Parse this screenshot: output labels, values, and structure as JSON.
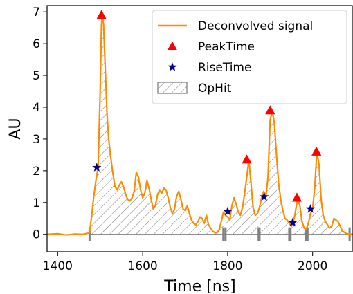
{
  "chart_data": {
    "type": "line",
    "xlabel": "Time [ns]",
    "ylabel": "AU",
    "xlim": [
      1375,
      2095
    ],
    "ylim": [
      -0.55,
      7.2
    ],
    "xticks": [
      1400,
      1600,
      1800,
      2000
    ],
    "yticks": [
      0,
      1,
      2,
      3,
      4,
      5,
      6,
      7
    ],
    "grid": false,
    "legend_position": "top-right",
    "legend": [
      {
        "label": "Deconvolved signal",
        "kind": "line",
        "color": "#ff8c00"
      },
      {
        "label": "PeakTime",
        "kind": "triangle",
        "color": "#ff0000"
      },
      {
        "label": "RiseTime",
        "kind": "star",
        "color": "#00008b"
      },
      {
        "label": "OpHit",
        "kind": "hatch",
        "color": "#808080"
      }
    ],
    "signal": {
      "name": "Deconvolved signal",
      "color": "#ff8c00",
      "x": [
        1375,
        1400,
        1420,
        1440,
        1460,
        1475,
        1480,
        1485,
        1490,
        1495,
        1500,
        1503,
        1505,
        1508,
        1512,
        1516,
        1520,
        1525,
        1530,
        1535,
        1540,
        1545,
        1550,
        1555,
        1560,
        1565,
        1570,
        1575,
        1580,
        1585,
        1590,
        1595,
        1600,
        1605,
        1610,
        1615,
        1620,
        1625,
        1630,
        1635,
        1640,
        1645,
        1650,
        1655,
        1660,
        1665,
        1670,
        1675,
        1680,
        1685,
        1690,
        1695,
        1700,
        1705,
        1710,
        1715,
        1720,
        1725,
        1730,
        1735,
        1740,
        1745,
        1750,
        1755,
        1760,
        1765,
        1770,
        1775,
        1780,
        1785,
        1790,
        1795,
        1800,
        1805,
        1810,
        1815,
        1820,
        1825,
        1830,
        1835,
        1840,
        1845,
        1850,
        1855,
        1860,
        1865,
        1870,
        1875,
        1880,
        1885,
        1890,
        1895,
        1900,
        1905,
        1910,
        1915,
        1920,
        1925,
        1930,
        1935,
        1940,
        1945,
        1950,
        1955,
        1960,
        1965,
        1970,
        1975,
        1980,
        1985,
        1990,
        1995,
        2000,
        2005,
        2010,
        2015,
        2020,
        2025,
        2030,
        2035,
        2040,
        2045,
        2050,
        2060,
        2070,
        2080,
        2095
      ],
      "y": [
        0,
        0.02,
        -0.02,
        0.01,
        0,
        0.05,
        0.6,
        1.2,
        1.7,
        2.1,
        4.5,
        6.6,
        6.9,
        6.6,
        5.2,
        3.8,
        3.0,
        2.4,
        1.9,
        1.5,
        1.4,
        1.55,
        1.65,
        1.5,
        1.25,
        1.1,
        1.05,
        1.15,
        1.35,
        1.95,
        1.8,
        1.4,
        1.15,
        1.3,
        1.7,
        1.45,
        1.1,
        0.8,
        0.9,
        1.25,
        1.4,
        1.3,
        1.45,
        1.4,
        1.15,
        0.85,
        0.65,
        0.8,
        1.2,
        1.35,
        1.1,
        0.8,
        0.75,
        0.9,
        0.65,
        0.45,
        0.35,
        0.3,
        0.4,
        0.55,
        0.5,
        0.35,
        0.6,
        0.3,
        0.2,
        0.1,
        0.05,
        0.05,
        0.15,
        0.4,
        0.7,
        0.6,
        0.55,
        0.45,
        0.9,
        1.15,
        0.95,
        0.7,
        0.6,
        0.85,
        1.3,
        1.8,
        2.35,
        1.6,
        0.85,
        0.6,
        0.65,
        0.85,
        1.15,
        1.35,
        1.2,
        1.8,
        3.6,
        3.9,
        3.5,
        2.5,
        1.6,
        1.1,
        0.75,
        0.5,
        0.45,
        0.35,
        0.25,
        0.4,
        0.75,
        1.15,
        0.9,
        0.4,
        0.2,
        0.15,
        0.35,
        0.65,
        0.8,
        1.5,
        2.6,
        2.2,
        1.1,
        0.6,
        0.4,
        0.3,
        0.2,
        0.25,
        0.5,
        0.4,
        0.1,
        0.02,
        0
      ]
    },
    "peak_time": [
      {
        "x": 1503,
        "y": 6.9
      },
      {
        "x": 1845,
        "y": 2.35
      },
      {
        "x": 1900,
        "y": 3.9
      },
      {
        "x": 1963,
        "y": 1.15
      },
      {
        "x": 2009,
        "y": 2.6
      }
    ],
    "rise_time": [
      {
        "x": 1492,
        "y": 2.1
      },
      {
        "x": 1800,
        "y": 0.72
      },
      {
        "x": 1886,
        "y": 1.18
      },
      {
        "x": 1953,
        "y": 0.37
      },
      {
        "x": 1995,
        "y": 0.8
      }
    ],
    "op_hits": [
      {
        "start": 1475,
        "end": 1790
      },
      {
        "start": 1795,
        "end": 1873
      },
      {
        "start": 1875,
        "end": 1945
      },
      {
        "start": 1948,
        "end": 1985
      },
      {
        "start": 1988,
        "end": 2087
      }
    ],
    "hit_boundaries": [
      1475,
      1790,
      1795,
      1873,
      1875,
      1945,
      1948,
      1985,
      1988,
      2087
    ]
  }
}
